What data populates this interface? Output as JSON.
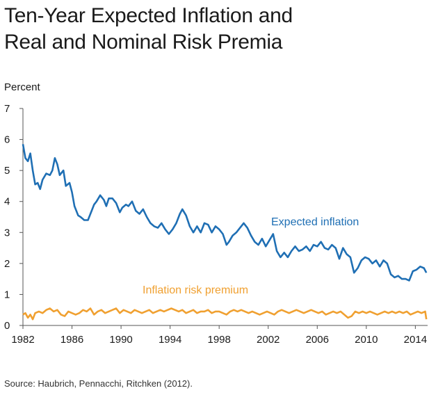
{
  "title_lines": [
    "Ten-Year Expected Inflation and",
    "Real and Nominal Risk Premia"
  ],
  "source": "Source: Haubrich, Pennacchi, Ritchken (2012).",
  "chart_data": {
    "type": "line",
    "ylabel": "Percent",
    "xlim": [
      1982,
      2015
    ],
    "ylim": [
      0,
      7
    ],
    "x_ticks": [
      "1982",
      "1986",
      "1990",
      "1994",
      "1998",
      "2002",
      "2006",
      "2010",
      "2014"
    ],
    "y_ticks": [
      "0",
      "1",
      "2",
      "3",
      "4",
      "5",
      "6",
      "7"
    ],
    "grid": false,
    "series": [
      {
        "name": "Expected inflation",
        "color": "#1f6fb4",
        "x": [
          1982.0,
          1982.2,
          1982.4,
          1982.6,
          1982.8,
          1983.0,
          1983.2,
          1983.4,
          1983.6,
          1983.9,
          1984.2,
          1984.4,
          1984.6,
          1984.8,
          1985.0,
          1985.3,
          1985.5,
          1985.8,
          1986.0,
          1986.2,
          1986.5,
          1986.7,
          1987.0,
          1987.3,
          1987.6,
          1987.8,
          1988.0,
          1988.3,
          1988.6,
          1988.8,
          1989.0,
          1989.3,
          1989.6,
          1989.9,
          1990.1,
          1990.4,
          1990.6,
          1990.9,
          1991.2,
          1991.5,
          1991.8,
          1992.1,
          1992.4,
          1992.7,
          1993.0,
          1993.3,
          1993.6,
          1993.9,
          1994.2,
          1994.5,
          1994.8,
          1995.0,
          1995.3,
          1995.6,
          1995.9,
          1996.2,
          1996.5,
          1996.8,
          1997.1,
          1997.4,
          1997.7,
          1998.0,
          1998.3,
          1998.6,
          1998.8,
          1999.1,
          1999.4,
          1999.7,
          2000.0,
          2000.3,
          2000.6,
          2000.9,
          2001.2,
          2001.5,
          2001.8,
          2002.1,
          2002.4,
          2002.7,
          2003.0,
          2003.3,
          2003.6,
          2003.9,
          2004.2,
          2004.5,
          2004.8,
          2005.1,
          2005.4,
          2005.7,
          2006.0,
          2006.3,
          2006.6,
          2006.9,
          2007.2,
          2007.5,
          2007.8,
          2008.1,
          2008.4,
          2008.7,
          2009.0,
          2009.3,
          2009.6,
          2009.9,
          2010.2,
          2010.5,
          2010.8,
          2011.1,
          2011.4,
          2011.7,
          2012.0,
          2012.3,
          2012.6,
          2012.9,
          2013.2,
          2013.5,
          2013.8,
          2014.1,
          2014.4,
          2014.7,
          2014.9
        ],
        "values": [
          5.85,
          5.4,
          5.3,
          5.55,
          5.0,
          4.55,
          4.6,
          4.4,
          4.7,
          4.9,
          4.85,
          5.0,
          5.4,
          5.2,
          4.85,
          5.0,
          4.5,
          4.6,
          4.3,
          3.85,
          3.55,
          3.5,
          3.4,
          3.4,
          3.7,
          3.9,
          4.0,
          4.2,
          4.05,
          3.85,
          4.1,
          4.1,
          3.95,
          3.65,
          3.8,
          3.9,
          3.85,
          4.0,
          3.7,
          3.6,
          3.75,
          3.5,
          3.3,
          3.2,
          3.15,
          3.3,
          3.1,
          2.95,
          3.1,
          3.3,
          3.6,
          3.75,
          3.55,
          3.2,
          3.0,
          3.2,
          3.0,
          3.3,
          3.25,
          3.0,
          3.2,
          3.1,
          2.95,
          2.6,
          2.7,
          2.9,
          3.0,
          3.15,
          3.3,
          3.15,
          2.9,
          2.7,
          2.6,
          2.8,
          2.55,
          2.75,
          2.95,
          2.4,
          2.2,
          2.35,
          2.2,
          2.4,
          2.55,
          2.4,
          2.45,
          2.55,
          2.4,
          2.6,
          2.55,
          2.7,
          2.5,
          2.45,
          2.6,
          2.5,
          2.15,
          2.5,
          2.3,
          2.2,
          1.7,
          1.85,
          2.1,
          2.2,
          2.15,
          2.0,
          2.1,
          1.9,
          2.1,
          2.0,
          1.65,
          1.55,
          1.6,
          1.5,
          1.5,
          1.45,
          1.75,
          1.8,
          1.9,
          1.85,
          1.7
        ]
      },
      {
        "name": "Inflation risk premium",
        "color": "#f0a030",
        "x": [
          1982.0,
          1982.2,
          1982.4,
          1982.6,
          1982.8,
          1983.0,
          1983.3,
          1983.6,
          1983.9,
          1984.2,
          1984.5,
          1984.8,
          1985.1,
          1985.4,
          1985.7,
          1986.0,
          1986.3,
          1986.6,
          1986.9,
          1987.2,
          1987.5,
          1987.8,
          1988.1,
          1988.4,
          1988.7,
          1989.0,
          1989.3,
          1989.6,
          1989.9,
          1990.2,
          1990.5,
          1990.8,
          1991.1,
          1991.4,
          1991.7,
          1992.0,
          1992.3,
          1992.6,
          1992.9,
          1993.2,
          1993.5,
          1993.8,
          1994.1,
          1994.4,
          1994.7,
          1995.0,
          1995.3,
          1995.6,
          1995.9,
          1996.2,
          1996.5,
          1996.8,
          1997.1,
          1997.4,
          1997.7,
          1998.0,
          1998.3,
          1998.6,
          1998.9,
          1999.2,
          1999.5,
          1999.8,
          2000.1,
          2000.4,
          2000.7,
          2001.0,
          2001.3,
          2001.6,
          2001.9,
          2002.2,
          2002.5,
          2002.8,
          2003.1,
          2003.4,
          2003.7,
          2004.0,
          2004.3,
          2004.6,
          2004.9,
          2005.2,
          2005.5,
          2005.8,
          2006.1,
          2006.4,
          2006.7,
          2007.0,
          2007.3,
          2007.6,
          2007.9,
          2008.2,
          2008.5,
          2008.8,
          2009.1,
          2009.4,
          2009.7,
          2010.0,
          2010.3,
          2010.6,
          2010.9,
          2011.2,
          2011.5,
          2011.8,
          2012.1,
          2012.4,
          2012.7,
          2013.0,
          2013.3,
          2013.6,
          2013.9,
          2014.2,
          2014.5,
          2014.8,
          2014.9
        ],
        "values": [
          0.35,
          0.4,
          0.25,
          0.35,
          0.2,
          0.4,
          0.45,
          0.4,
          0.5,
          0.55,
          0.45,
          0.5,
          0.35,
          0.3,
          0.45,
          0.4,
          0.35,
          0.4,
          0.5,
          0.45,
          0.55,
          0.35,
          0.45,
          0.5,
          0.4,
          0.45,
          0.5,
          0.55,
          0.4,
          0.5,
          0.45,
          0.4,
          0.5,
          0.45,
          0.4,
          0.45,
          0.5,
          0.4,
          0.45,
          0.5,
          0.45,
          0.5,
          0.55,
          0.5,
          0.45,
          0.5,
          0.4,
          0.45,
          0.5,
          0.4,
          0.45,
          0.45,
          0.5,
          0.4,
          0.45,
          0.45,
          0.4,
          0.35,
          0.45,
          0.5,
          0.45,
          0.5,
          0.45,
          0.4,
          0.45,
          0.4,
          0.35,
          0.4,
          0.45,
          0.4,
          0.35,
          0.45,
          0.5,
          0.45,
          0.4,
          0.45,
          0.5,
          0.45,
          0.4,
          0.45,
          0.5,
          0.45,
          0.4,
          0.45,
          0.35,
          0.4,
          0.45,
          0.4,
          0.45,
          0.35,
          0.25,
          0.3,
          0.45,
          0.4,
          0.45,
          0.4,
          0.45,
          0.4,
          0.35,
          0.4,
          0.45,
          0.4,
          0.45,
          0.4,
          0.45,
          0.4,
          0.45,
          0.35,
          0.4,
          0.45,
          0.4,
          0.45,
          0.2
        ]
      }
    ]
  }
}
